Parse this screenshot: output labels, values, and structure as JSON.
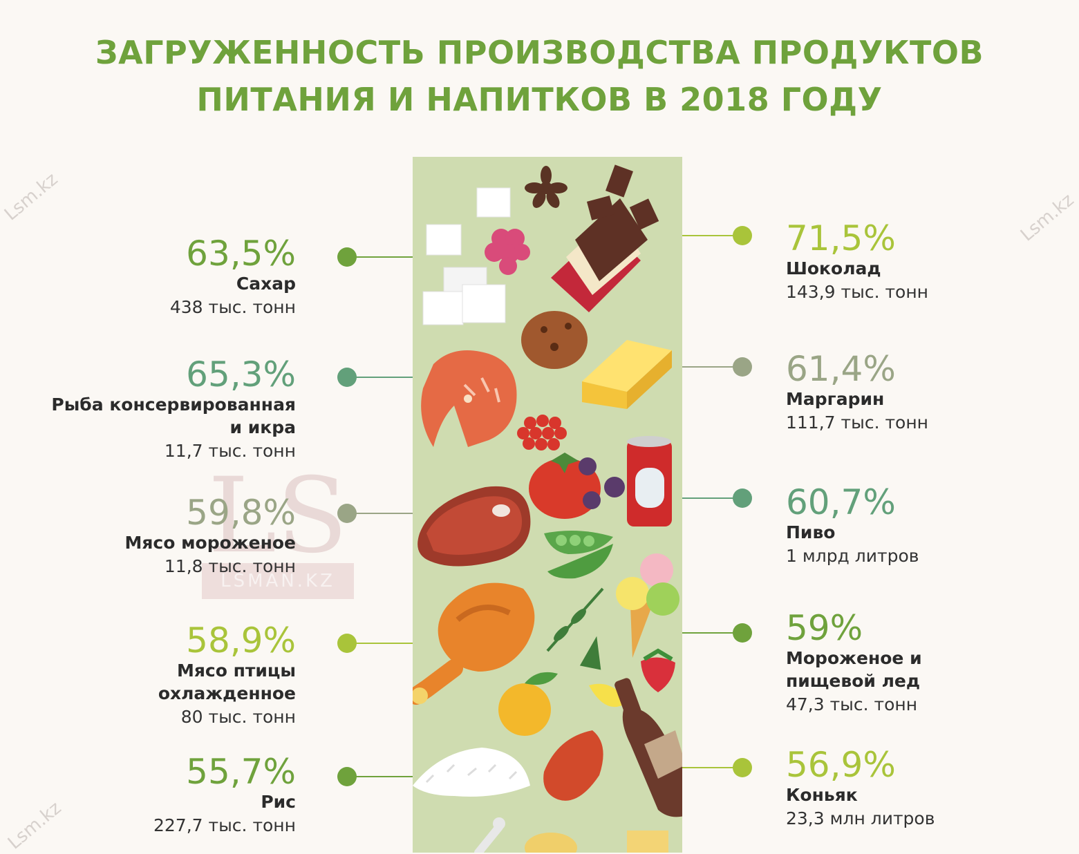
{
  "title": {
    "line1": "ЗАГРУЖЕННОСТЬ ПРОИЗВОДСТВА ПРОДУКТОВ",
    "line2": "ПИТАНИЯ И НАПИТКОВ В 2018 ГОДУ"
  },
  "watermark": {
    "logo": "LS",
    "logo_sub": "LSMAN.KZ",
    "corner_text": "Lsm.kz"
  },
  "colors": {
    "title": "#6fa23c",
    "strip": "#cfdcb0",
    "dark_green": "#6fa23c",
    "teal": "#62a07a",
    "olive_gray": "#9aa586",
    "lime": "#a9c43a",
    "line": "#8aa86a"
  },
  "chart_data": {
    "type": "infographic",
    "title": "ЗАГРУЖЕННОСТЬ ПРОИЗВОДСТВА ПРОДУКТОВ ПИТАНИЯ И НАПИТКОВ В 2018 ГОДУ",
    "unit": "%",
    "items": [
      {
        "side": "left",
        "pct_label": "63,5%",
        "value": 63.5,
        "name": "Сахар",
        "name_lines": [
          "Сахар"
        ],
        "amount": "438 тыс. тонн",
        "color": "#6fa23c"
      },
      {
        "side": "left",
        "pct_label": "65,3%",
        "value": 65.3,
        "name": "Рыба консервированная и икра",
        "name_lines": [
          "Рыба консервированная",
          "и икра"
        ],
        "amount": "11,7 тыс. тонн",
        "color": "#62a07a"
      },
      {
        "side": "left",
        "pct_label": "59,8%",
        "value": 59.8,
        "name": "Мясо мороженое",
        "name_lines": [
          "Мясо мороженое"
        ],
        "amount": "11,8 тыс. тонн",
        "color": "#9aa586"
      },
      {
        "side": "left",
        "pct_label": "58,9%",
        "value": 58.9,
        "name": "Мясо птицы охлажденное",
        "name_lines": [
          "Мясо птицы",
          "охлажденное"
        ],
        "amount": "80 тыс. тонн",
        "color": "#a9c43a"
      },
      {
        "side": "left",
        "pct_label": "55,7%",
        "value": 55.7,
        "name": "Рис",
        "name_lines": [
          "Рис"
        ],
        "amount": "227,7 тыс. тонн",
        "color": "#6fa23c"
      },
      {
        "side": "right",
        "pct_label": "71,5%",
        "value": 71.5,
        "name": "Шоколад",
        "name_lines": [
          "Шоколад"
        ],
        "amount": "143,9 тыс. тонн",
        "color": "#a9c43a"
      },
      {
        "side": "right",
        "pct_label": "61,4%",
        "value": 61.4,
        "name": "Маргарин",
        "name_lines": [
          "Маргарин"
        ],
        "amount": "111,7 тыс. тонн",
        "color": "#9aa586"
      },
      {
        "side": "right",
        "pct_label": "60,7%",
        "value": 60.7,
        "name": "Пиво",
        "name_lines": [
          "Пиво"
        ],
        "amount": "1 млрд литров",
        "color": "#62a07a"
      },
      {
        "side": "right",
        "pct_label": "59%",
        "value": 59.0,
        "name": "Мороженое и пищевой лед",
        "name_lines": [
          "Мороженое и",
          "пищевой лед"
        ],
        "amount": "47,3 тыс. тонн",
        "color": "#6fa23c"
      },
      {
        "side": "right",
        "pct_label": "56,9%",
        "value": 56.9,
        "name": "Коньяк",
        "name_lines": [
          "Коньяк"
        ],
        "amount": "23,3 млн литров",
        "color": "#a9c43a"
      }
    ]
  },
  "illustrations": [
    "sugar-cubes-icon",
    "star-anise-icon",
    "chocolate-bar-icon",
    "raspberry-icon",
    "cookie-icon",
    "butter-block-icon",
    "salmon-steak-icon",
    "caviar-icon",
    "soda-can-icon",
    "tomato-icon",
    "plums-icon",
    "steak-icon",
    "peas-pod-icon",
    "ice-cream-icon",
    "roast-chicken-icon",
    "herb-sprig-icon",
    "strawberry-icon",
    "apricot-icon",
    "lemon-slice-icon",
    "wine-bottle-icon",
    "fish-fillet-icon",
    "rice-pile-icon",
    "bone-icon",
    "pasta-icon"
  ]
}
